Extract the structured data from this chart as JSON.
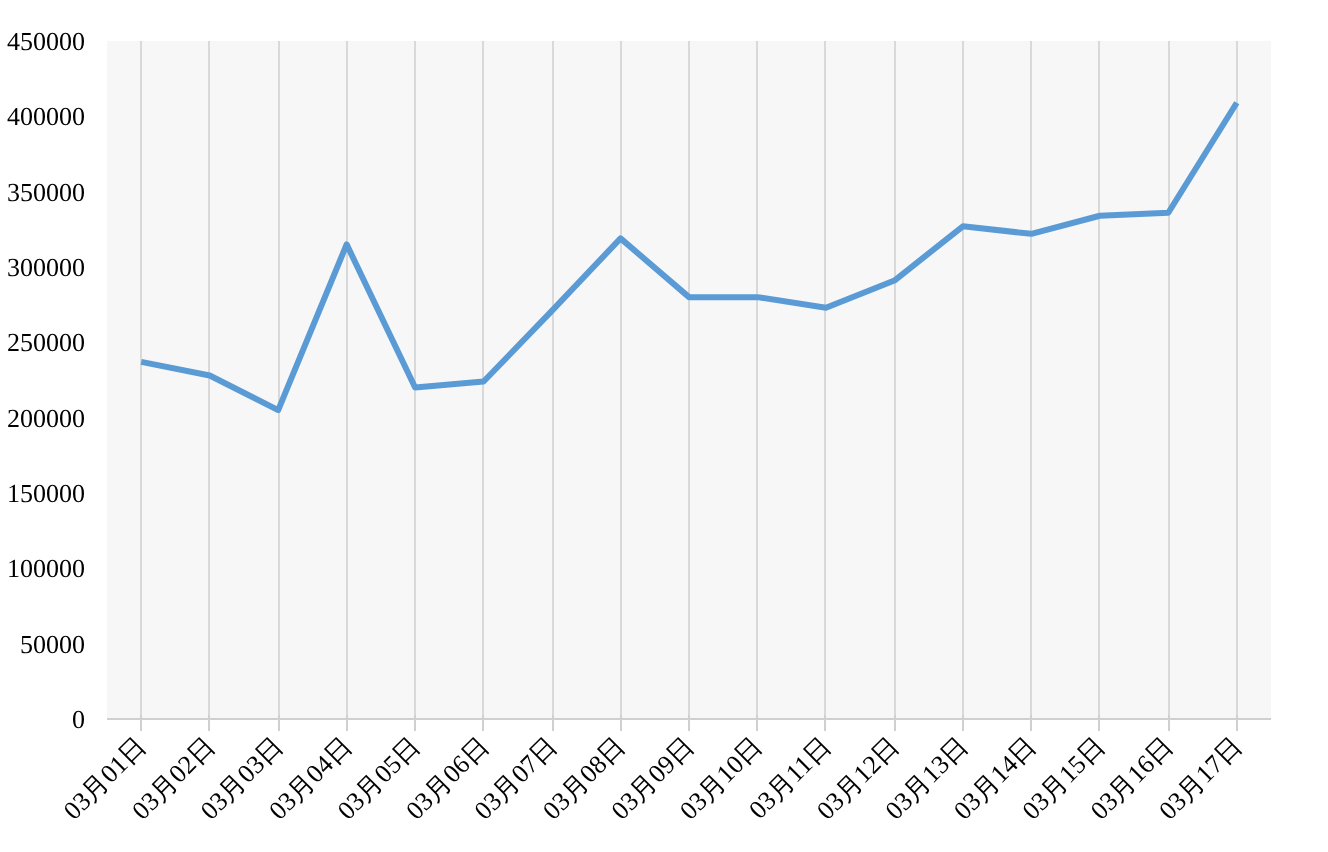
{
  "chart_data": {
    "type": "line",
    "categories": [
      "03月01日",
      "03月02日",
      "03月03日",
      "03月04日",
      "03月05日",
      "03月06日",
      "03月07日",
      "03月08日",
      "03月09日",
      "03月10日",
      "03月11日",
      "03月12日",
      "03月13日",
      "03月14日",
      "03月15日",
      "03月16日",
      "03月17日"
    ],
    "series": [
      {
        "color": "#5b9bd5",
        "values": [
          237000,
          228000,
          205000,
          315000,
          220000,
          224000,
          271000,
          319000,
          280000,
          280000,
          273000,
          291000,
          327000,
          322000,
          334000,
          336000,
          409000
        ]
      }
    ],
    "ylim": [
      0,
      450000
    ],
    "yticks": [
      0,
      50000,
      100000,
      150000,
      200000,
      250000,
      300000,
      350000,
      400000,
      450000
    ],
    "grid": "x",
    "marker": "none",
    "line_style": "solid"
  }
}
